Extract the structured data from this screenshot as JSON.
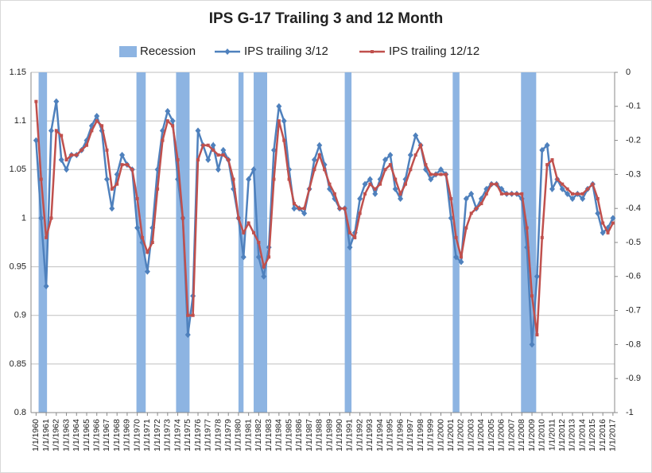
{
  "chart_data": {
    "type": "line",
    "title": "IPS G-17 Trailing 3 and 12 Month",
    "x": [
      "1/1/1960",
      "7/1/1960",
      "1/1/1961",
      "7/1/1961",
      "1/1/1962",
      "7/1/1962",
      "1/1/1963",
      "7/1/1963",
      "1/1/1964",
      "7/1/1964",
      "1/1/1965",
      "7/1/1965",
      "1/1/1966",
      "7/1/1966",
      "1/1/1967",
      "7/1/1967",
      "1/1/1968",
      "7/1/1968",
      "1/1/1969",
      "7/1/1969",
      "1/1/1970",
      "7/1/1970",
      "1/1/1971",
      "7/1/1971",
      "1/1/1972",
      "7/1/1972",
      "1/1/1973",
      "7/1/1973",
      "1/1/1974",
      "7/1/1974",
      "1/1/1975",
      "7/1/1975",
      "1/1/1976",
      "7/1/1976",
      "1/1/1977",
      "7/1/1977",
      "1/1/1978",
      "7/1/1978",
      "1/1/1979",
      "7/1/1979",
      "1/1/1980",
      "7/1/1980",
      "1/1/1981",
      "7/1/1981",
      "1/1/1982",
      "7/1/1982",
      "1/1/1983",
      "7/1/1983",
      "1/1/1984",
      "7/1/1984",
      "1/1/1985",
      "7/1/1985",
      "1/1/1986",
      "7/1/1986",
      "1/1/1987",
      "7/1/1987",
      "1/1/1988",
      "7/1/1988",
      "1/1/1989",
      "7/1/1989",
      "1/1/1990",
      "7/1/1990",
      "1/1/1991",
      "7/1/1991",
      "1/1/1992",
      "7/1/1992",
      "1/1/1993",
      "7/1/1993",
      "1/1/1994",
      "7/1/1994",
      "1/1/1995",
      "7/1/1995",
      "1/1/1996",
      "7/1/1996",
      "1/1/1997",
      "7/1/1997",
      "1/1/1998",
      "7/1/1998",
      "1/1/1999",
      "7/1/1999",
      "1/1/2000",
      "7/1/2000",
      "1/1/2001",
      "7/1/2001",
      "1/1/2002",
      "7/1/2002",
      "1/1/2003",
      "7/1/2003",
      "1/1/2004",
      "7/1/2004",
      "1/1/2005",
      "7/1/2005",
      "1/1/2006",
      "7/1/2006",
      "1/1/2007",
      "7/1/2007",
      "1/1/2008",
      "7/1/2008",
      "1/1/2009",
      "7/1/2009",
      "1/1/2010",
      "7/1/2010",
      "1/1/2011",
      "7/1/2011",
      "1/1/2012",
      "7/1/2012",
      "1/1/2013",
      "7/1/2013",
      "1/1/2014",
      "7/1/2014",
      "1/1/2015",
      "7/1/2015",
      "1/1/2016",
      "7/1/2016",
      "1/1/2017"
    ],
    "series": [
      {
        "name": "IPS trailing 3/12",
        "color": "#4f81bd",
        "marker": "diamond",
        "values": [
          1.08,
          1.0,
          0.93,
          1.09,
          1.12,
          1.06,
          1.05,
          1.065,
          1.065,
          1.07,
          1.08,
          1.095,
          1.105,
          1.09,
          1.04,
          1.01,
          1.045,
          1.065,
          1.055,
          1.05,
          0.99,
          0.975,
          0.945,
          0.99,
          1.05,
          1.09,
          1.11,
          1.1,
          1.04,
          1.0,
          0.88,
          0.92,
          1.09,
          1.075,
          1.06,
          1.075,
          1.05,
          1.07,
          1.06,
          1.03,
          1.0,
          0.96,
          1.04,
          1.05,
          0.96,
          0.94,
          0.97,
          1.07,
          1.115,
          1.1,
          1.05,
          1.01,
          1.01,
          1.005,
          1.03,
          1.06,
          1.075,
          1.055,
          1.03,
          1.02,
          1.01,
          1.01,
          0.97,
          0.985,
          1.02,
          1.035,
          1.04,
          1.025,
          1.04,
          1.06,
          1.065,
          1.03,
          1.02,
          1.04,
          1.065,
          1.085,
          1.075,
          1.05,
          1.04,
          1.045,
          1.05,
          1.045,
          1.0,
          0.96,
          0.955,
          1.02,
          1.025,
          1.01,
          1.02,
          1.03,
          1.035,
          1.035,
          1.03,
          1.025,
          1.025,
          1.025,
          1.02,
          0.97,
          0.87,
          0.94,
          1.07,
          1.075,
          1.03,
          1.04,
          1.03,
          1.025,
          1.02,
          1.025,
          1.02,
          1.03,
          1.035,
          1.005,
          0.985,
          0.99,
          1.0
        ]
      },
      {
        "name": "IPS trailing 12/12",
        "color": "#c0504d",
        "marker": "square",
        "values": [
          1.12,
          1.04,
          0.98,
          1.0,
          1.09,
          1.085,
          1.06,
          1.065,
          1.065,
          1.07,
          1.075,
          1.09,
          1.1,
          1.095,
          1.07,
          1.03,
          1.035,
          1.055,
          1.055,
          1.05,
          1.02,
          0.98,
          0.965,
          0.975,
          1.03,
          1.08,
          1.1,
          1.095,
          1.06,
          1.0,
          0.9,
          0.9,
          1.06,
          1.075,
          1.075,
          1.07,
          1.065,
          1.065,
          1.06,
          1.04,
          1.0,
          0.985,
          0.995,
          0.985,
          0.975,
          0.95,
          0.96,
          1.04,
          1.1,
          1.08,
          1.04,
          1.015,
          1.01,
          1.01,
          1.03,
          1.05,
          1.065,
          1.05,
          1.035,
          1.025,
          1.01,
          1.01,
          0.985,
          0.98,
          1.005,
          1.025,
          1.035,
          1.03,
          1.035,
          1.05,
          1.055,
          1.04,
          1.025,
          1.035,
          1.05,
          1.065,
          1.075,
          1.055,
          1.045,
          1.045,
          1.045,
          1.045,
          1.02,
          0.98,
          0.96,
          0.99,
          1.005,
          1.01,
          1.015,
          1.025,
          1.035,
          1.035,
          1.025,
          1.025,
          1.025,
          1.025,
          1.025,
          0.99,
          0.92,
          0.88,
          0.98,
          1.055,
          1.06,
          1.04,
          1.035,
          1.03,
          1.025,
          1.025,
          1.025,
          1.03,
          1.035,
          1.02,
          0.995,
          0.985,
          0.995
        ]
      }
    ],
    "recession": {
      "name": "Recession",
      "color": "#8db4e2",
      "axis": "y2",
      "value": -1,
      "periods": [
        [
          "4/1/1960",
          "2/1/1961"
        ],
        [
          "12/1/1969",
          "11/1/1970"
        ],
        [
          "11/1/1973",
          "3/1/1975"
        ],
        [
          "1/1/1980",
          "7/1/1980"
        ],
        [
          "7/1/1981",
          "11/1/1982"
        ],
        [
          "7/1/1990",
          "3/1/1991"
        ],
        [
          "3/1/2001",
          "11/1/2001"
        ],
        [
          "12/1/2007",
          "6/1/2009"
        ]
      ]
    },
    "xlim": [
      "7/1/1959",
      "3/1/2017"
    ],
    "xticks": [
      "1/1/1960",
      "1/1/1961",
      "1/1/1962",
      "1/1/1963",
      "1/1/1964",
      "1/1/1965",
      "1/1/1966",
      "1/1/1967",
      "1/1/1968",
      "1/1/1969",
      "1/1/1970",
      "1/1/1971",
      "1/1/1972",
      "1/1/1973",
      "1/1/1974",
      "1/1/1975",
      "1/1/1976",
      "1/1/1977",
      "1/1/1978",
      "1/1/1979",
      "1/1/1980",
      "1/1/1981",
      "1/1/1982",
      "1/1/1983",
      "1/1/1984",
      "1/1/1985",
      "1/1/1986",
      "1/1/1987",
      "1/1/1988",
      "1/1/1989",
      "1/1/1990",
      "1/1/1991",
      "1/1/1992",
      "1/1/1993",
      "1/1/1994",
      "1/1/1995",
      "1/1/1996",
      "1/1/1997",
      "1/1/1998",
      "1/1/1999",
      "1/1/2000",
      "1/1/2001",
      "1/1/2002",
      "1/1/2003",
      "1/1/2004",
      "1/1/2005",
      "1/1/2006",
      "1/1/2007",
      "1/1/2008",
      "1/1/2009",
      "1/1/2010",
      "1/1/2011",
      "1/1/2012",
      "1/1/2013",
      "1/1/2014",
      "1/1/2015",
      "1/1/2016",
      "1/1/2017"
    ],
    "ylim": [
      0.8,
      1.15
    ],
    "yticks": [
      0.8,
      0.85,
      0.9,
      0.95,
      1,
      1.05,
      1.1,
      1.15
    ],
    "y2lim": [
      -1,
      0
    ],
    "y2ticks": [
      -1,
      -0.9,
      -0.8,
      -0.7,
      -0.6,
      -0.5,
      -0.4,
      -0.3,
      -0.2,
      -0.1,
      0
    ],
    "grid": true,
    "legend": "top"
  }
}
